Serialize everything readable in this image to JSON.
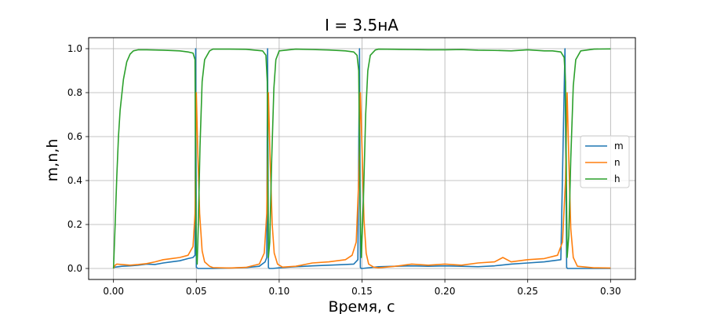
{
  "chart_data": {
    "type": "line",
    "title": "I = 3.5нА",
    "xlabel": "Время, с",
    "ylabel": "m,n,h",
    "xlim": [
      -0.015,
      0.315
    ],
    "ylim": [
      -0.05,
      1.05
    ],
    "xticks": [
      0.0,
      0.05,
      0.1,
      0.15,
      0.2,
      0.25,
      0.3
    ],
    "xtick_labels": [
      "0.00",
      "0.05",
      "0.10",
      "0.15",
      "0.20",
      "0.25",
      "0.30"
    ],
    "yticks": [
      0.0,
      0.2,
      0.4,
      0.6,
      0.8,
      1.0
    ],
    "ytick_labels": [
      "0.0",
      "0.2",
      "0.4",
      "0.6",
      "0.8",
      "1.0"
    ],
    "grid": true,
    "legend_position": "center-right",
    "series": [
      {
        "name": "m",
        "color": "#1f77b4",
        "x": [
          0.0,
          0.005,
          0.01,
          0.015,
          0.02,
          0.025,
          0.03,
          0.035,
          0.04,
          0.045,
          0.048,
          0.0492,
          0.0496,
          0.05,
          0.051,
          0.055,
          0.06,
          0.07,
          0.08,
          0.088,
          0.0915,
          0.0925,
          0.093,
          0.0935,
          0.094,
          0.096,
          0.1,
          0.11,
          0.12,
          0.13,
          0.14,
          0.145,
          0.1475,
          0.1485,
          0.149,
          0.1495,
          0.15,
          0.155,
          0.16,
          0.17,
          0.18,
          0.19,
          0.2,
          0.21,
          0.22,
          0.23,
          0.24,
          0.25,
          0.26,
          0.27,
          0.2725,
          0.2735,
          0.274,
          0.2745,
          0.275,
          0.28,
          0.29,
          0.3
        ],
        "values": [
          0.005,
          0.01,
          0.012,
          0.015,
          0.02,
          0.018,
          0.025,
          0.03,
          0.035,
          0.045,
          0.05,
          0.06,
          1.0,
          0.005,
          0.0,
          0.0,
          0.0,
          0.002,
          0.004,
          0.01,
          0.03,
          0.05,
          1.0,
          0.005,
          0.0,
          0.0,
          0.003,
          0.008,
          0.012,
          0.015,
          0.018,
          0.02,
          0.04,
          1.0,
          0.005,
          0.0,
          0.0,
          0.004,
          0.008,
          0.01,
          0.012,
          0.01,
          0.012,
          0.01,
          0.008,
          0.012,
          0.02,
          0.025,
          0.03,
          0.04,
          1.0,
          0.005,
          0.0,
          0.0,
          0.0,
          0.0,
          0.0,
          0.0
        ]
      },
      {
        "name": "n",
        "color": "#ff7f0e",
        "x": [
          0.0,
          0.001,
          0.002,
          0.005,
          0.01,
          0.015,
          0.02,
          0.025,
          0.03,
          0.035,
          0.04,
          0.045,
          0.048,
          0.0492,
          0.05,
          0.0508,
          0.052,
          0.0535,
          0.055,
          0.058,
          0.06,
          0.07,
          0.08,
          0.088,
          0.091,
          0.0925,
          0.0935,
          0.0945,
          0.0958,
          0.097,
          0.099,
          0.102,
          0.11,
          0.12,
          0.13,
          0.14,
          0.144,
          0.1465,
          0.148,
          0.149,
          0.15,
          0.1512,
          0.1525,
          0.154,
          0.157,
          0.16,
          0.17,
          0.18,
          0.19,
          0.2,
          0.21,
          0.22,
          0.23,
          0.235,
          0.24,
          0.25,
          0.26,
          0.268,
          0.271,
          0.2728,
          0.2738,
          0.2748,
          0.276,
          0.2775,
          0.28,
          0.29,
          0.3
        ],
        "values": [
          0.0,
          0.015,
          0.02,
          0.018,
          0.015,
          0.018,
          0.022,
          0.03,
          0.04,
          0.045,
          0.05,
          0.06,
          0.1,
          0.25,
          0.8,
          0.55,
          0.25,
          0.08,
          0.03,
          0.01,
          0.004,
          0.002,
          0.005,
          0.02,
          0.07,
          0.25,
          0.8,
          0.5,
          0.2,
          0.07,
          0.02,
          0.006,
          0.01,
          0.025,
          0.03,
          0.04,
          0.06,
          0.12,
          0.4,
          0.8,
          0.55,
          0.22,
          0.07,
          0.02,
          0.006,
          0.003,
          0.01,
          0.02,
          0.015,
          0.02,
          0.015,
          0.025,
          0.03,
          0.05,
          0.03,
          0.04,
          0.045,
          0.06,
          0.12,
          0.4,
          0.8,
          0.5,
          0.18,
          0.05,
          0.01,
          0.003,
          0.002
        ]
      },
      {
        "name": "h",
        "color": "#2ca02c",
        "x": [
          0.0,
          0.001,
          0.002,
          0.003,
          0.004,
          0.006,
          0.008,
          0.01,
          0.012,
          0.015,
          0.02,
          0.03,
          0.04,
          0.045,
          0.048,
          0.0492,
          0.0498,
          0.0505,
          0.0512,
          0.0522,
          0.0535,
          0.055,
          0.058,
          0.06,
          0.07,
          0.08,
          0.09,
          0.092,
          0.0928,
          0.0935,
          0.0943,
          0.0955,
          0.0968,
          0.098,
          0.1,
          0.11,
          0.12,
          0.13,
          0.14,
          0.145,
          0.147,
          0.148,
          0.1488,
          0.1496,
          0.1508,
          0.1522,
          0.1535,
          0.155,
          0.158,
          0.16,
          0.17,
          0.18,
          0.19,
          0.2,
          0.21,
          0.22,
          0.23,
          0.24,
          0.25,
          0.26,
          0.265,
          0.27,
          0.272,
          0.2728,
          0.2738,
          0.2748,
          0.276,
          0.2775,
          0.279,
          0.282,
          0.29,
          0.3
        ],
        "values": [
          0.0,
          0.2,
          0.42,
          0.6,
          0.72,
          0.86,
          0.94,
          0.975,
          0.99,
          0.995,
          0.995,
          0.993,
          0.99,
          0.985,
          0.98,
          0.95,
          0.1,
          0.02,
          0.2,
          0.55,
          0.85,
          0.95,
          0.99,
          0.998,
          0.998,
          0.997,
          0.99,
          0.97,
          0.85,
          0.05,
          0.12,
          0.5,
          0.82,
          0.95,
          0.99,
          0.998,
          0.996,
          0.994,
          0.99,
          0.985,
          0.97,
          0.9,
          0.3,
          0.05,
          0.3,
          0.7,
          0.9,
          0.97,
          0.994,
          0.998,
          0.997,
          0.996,
          0.995,
          0.995,
          0.996,
          0.993,
          0.992,
          0.99,
          0.995,
          0.99,
          0.99,
          0.985,
          0.96,
          0.85,
          0.05,
          0.15,
          0.5,
          0.83,
          0.95,
          0.99,
          0.998,
          0.999
        ]
      }
    ]
  }
}
